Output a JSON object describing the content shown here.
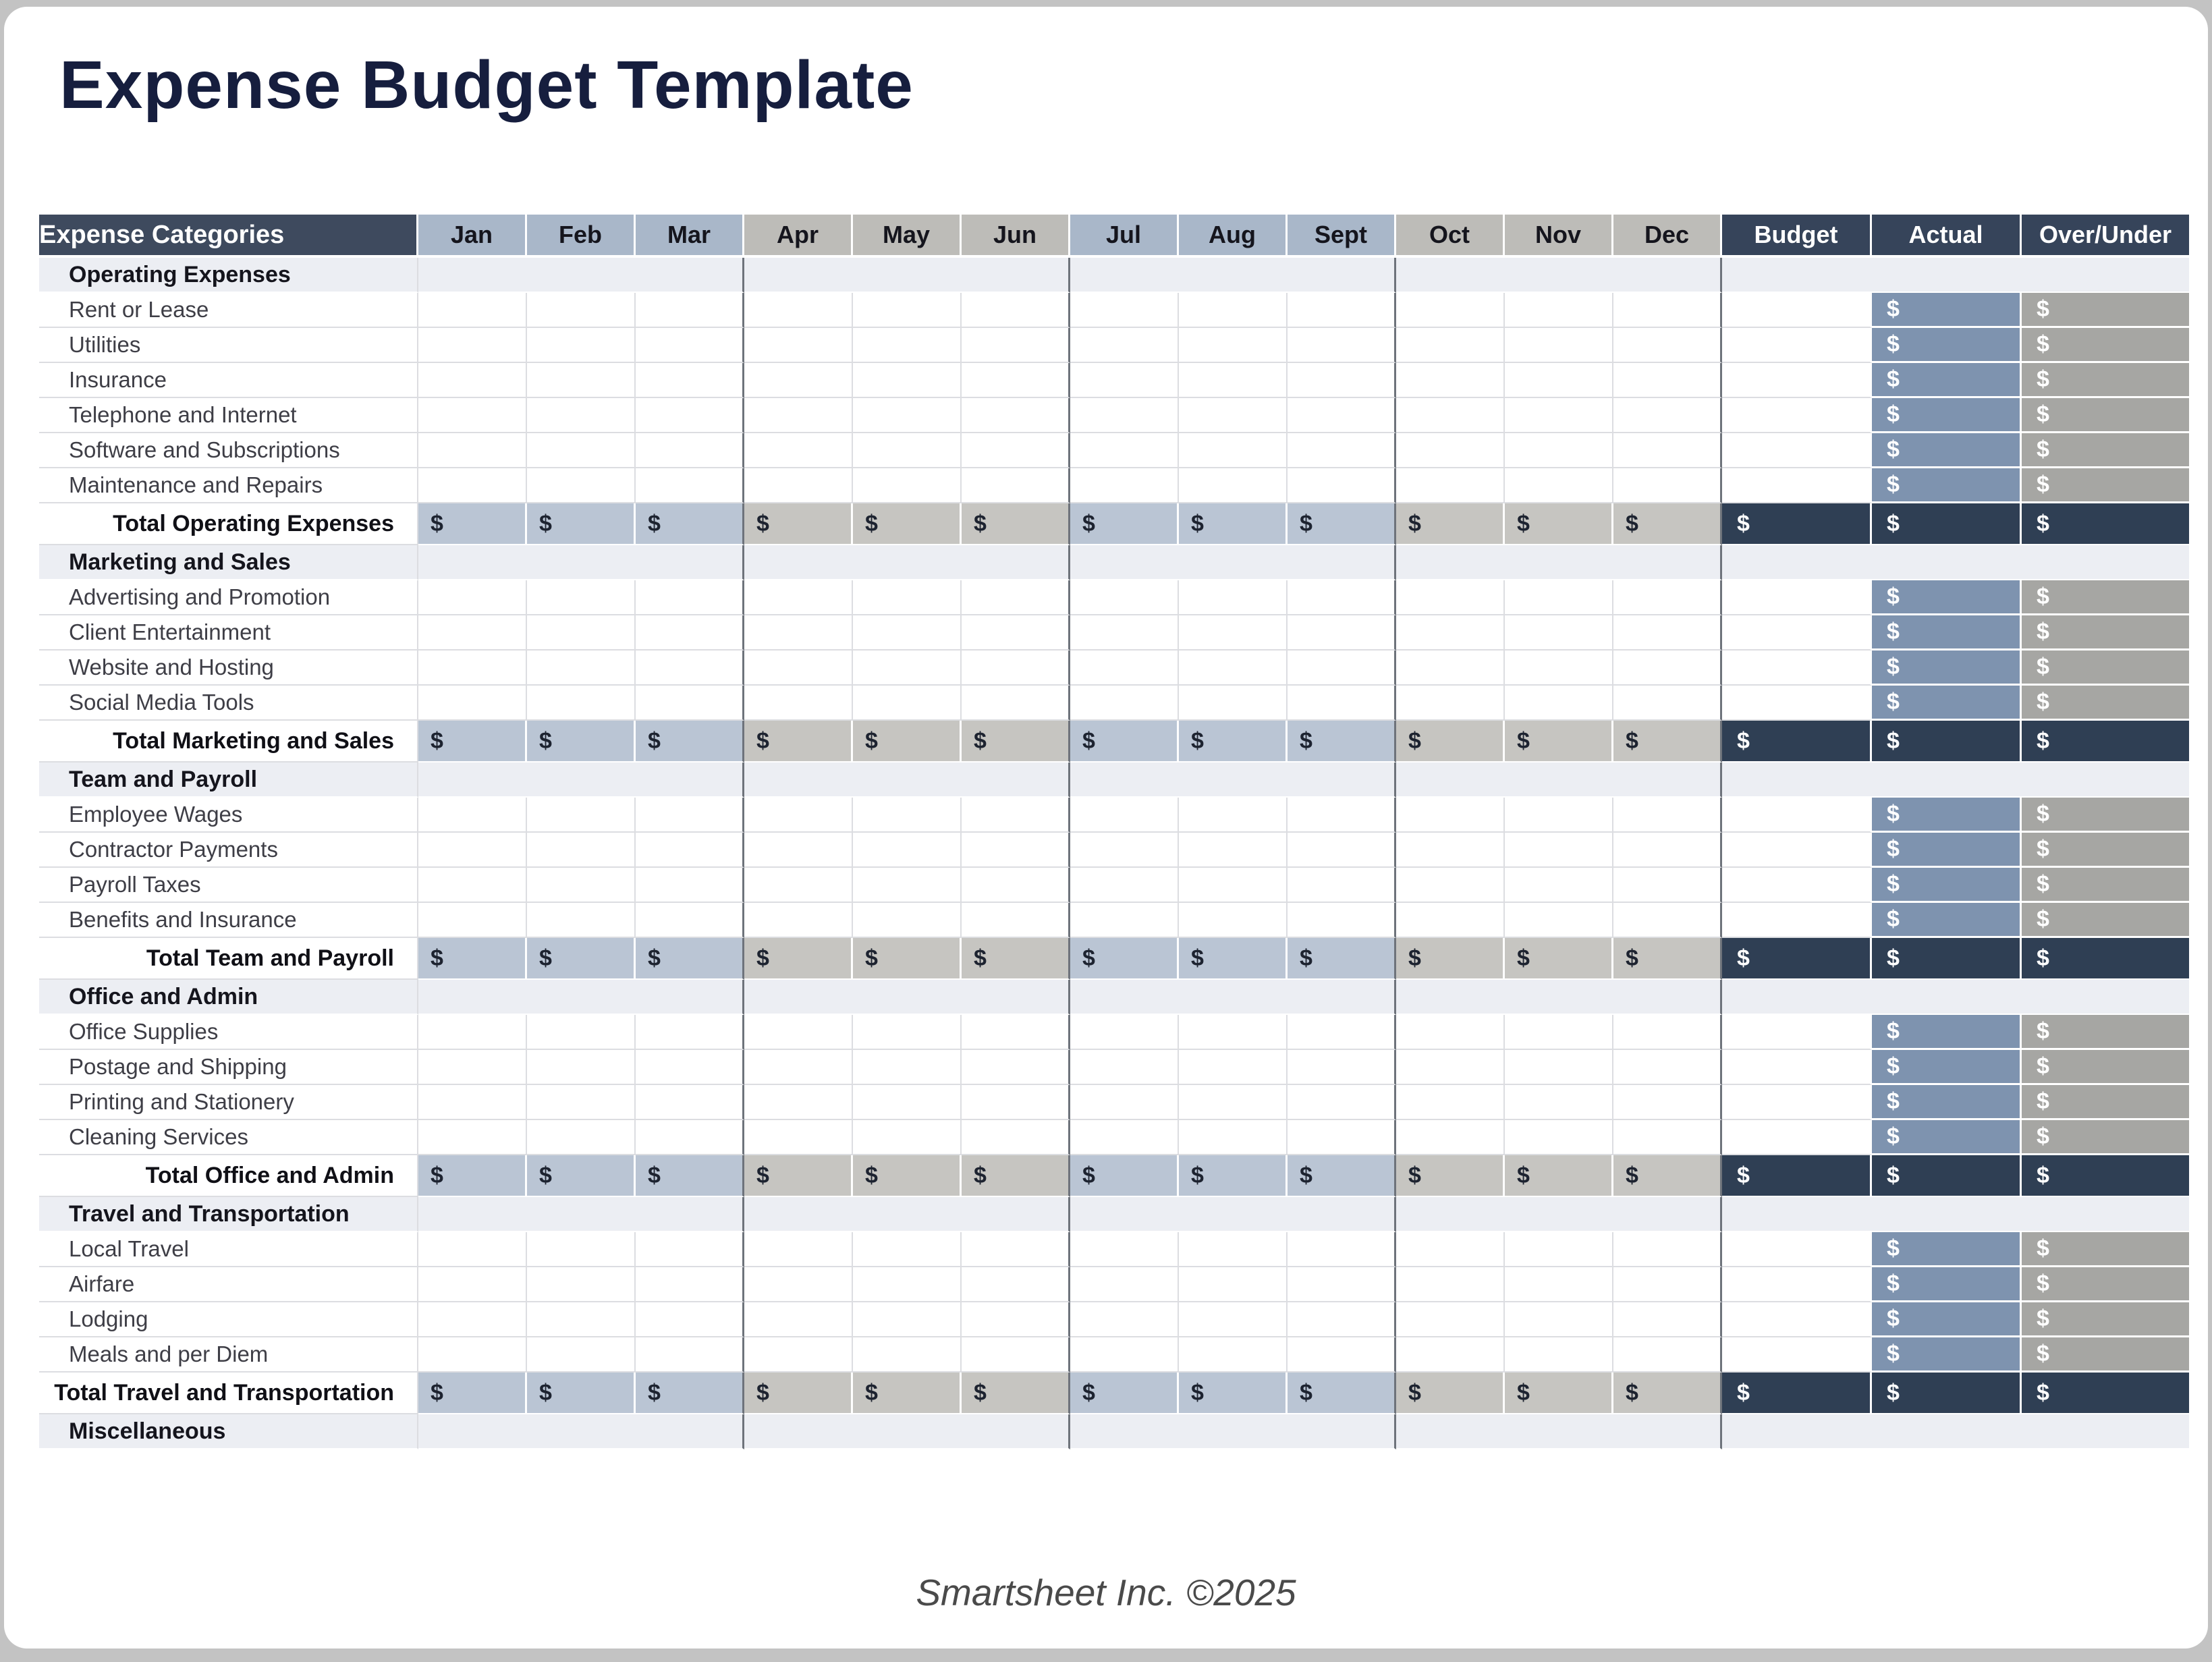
{
  "page": {
    "title": "Expense Budget Template",
    "footer_credit": "Smartsheet Inc. ©2025"
  },
  "table": {
    "category_column_header": "Expense Categories",
    "month_headers": [
      "Jan",
      "Feb",
      "Mar",
      "Apr",
      "May",
      "Jun",
      "Jul",
      "Aug",
      "Sept",
      "Oct",
      "Nov",
      "Dec"
    ],
    "summary_column_headers": [
      "Budget",
      "Actual",
      "Over/Under"
    ],
    "currency_symbol": "$",
    "empty_amount": "-",
    "sections": [
      {
        "name": "Operating Expenses",
        "items": [
          "Rent or Lease",
          "Utilities",
          "Insurance",
          "Telephone and Internet",
          "Software and Subscriptions",
          "Maintenance and Repairs"
        ],
        "total_label": "Total Operating Expenses"
      },
      {
        "name": "Marketing and Sales",
        "items": [
          "Advertising and Promotion",
          "Client Entertainment",
          "Website and Hosting",
          "Social Media Tools"
        ],
        "total_label": "Total Marketing and Sales"
      },
      {
        "name": "Team and Payroll",
        "items": [
          "Employee Wages",
          "Contractor Payments",
          "Payroll Taxes",
          "Benefits and Insurance"
        ],
        "total_label": "Total Team and Payroll"
      },
      {
        "name": "Office and Admin",
        "items": [
          "Office Supplies",
          "Postage and Shipping",
          "Printing and Stationery",
          "Cleaning Services"
        ],
        "total_label": "Total Office and Admin"
      },
      {
        "name": "Travel and Transportation",
        "items": [
          "Local Travel",
          "Airfare",
          "Lodging",
          "Meals and per Diem"
        ],
        "total_label": "Total Travel and Transportation"
      },
      {
        "name": "Miscellaneous",
        "items": [],
        "total_label": null
      }
    ]
  },
  "colors": {
    "title_text": "#161e3e",
    "header_category_bg": "#3e4a5e",
    "header_month_blue": "#a9b7c9",
    "header_month_gray": "#bdbcb8",
    "header_summary_bg": "#36445a",
    "section_row_bg": "#eceef3",
    "total_month_blue": "#bac5d4",
    "total_month_gray": "#c6c5c1",
    "total_summary_bg": "#2f3f54",
    "actual_cell": "#7e93af",
    "overunder_cell": "#a6a6a3",
    "quarter_line": "#6e737b",
    "grid_line": "#dcdde1",
    "footer_text": "#4a4a4a",
    "page_outer": "#c3c3c3"
  }
}
